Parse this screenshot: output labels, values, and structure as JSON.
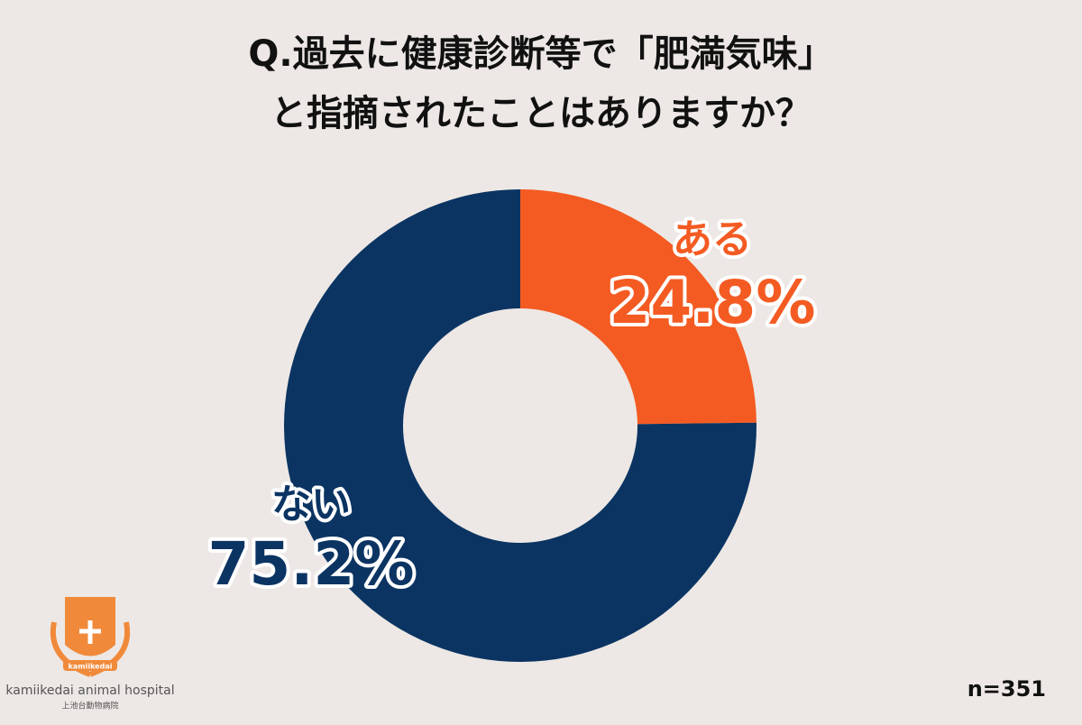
{
  "chart_data": {
    "type": "donut",
    "title": [
      "Q.過去に健康診断等で「肥満気味」",
      "と指摘されたことはありますか？"
    ],
    "categories": [
      "ある",
      "ない"
    ],
    "values": [
      24.8,
      75.2
    ],
    "value_labels": [
      "24.8%",
      "75.2%"
    ],
    "colors": [
      "#f45b22",
      "#0b3462"
    ],
    "note": "n=351"
  },
  "logo": {
    "badge": "kamiikedai",
    "name": "kamiikedai animal hospital",
    "name_ja": "上池台動物病院"
  }
}
